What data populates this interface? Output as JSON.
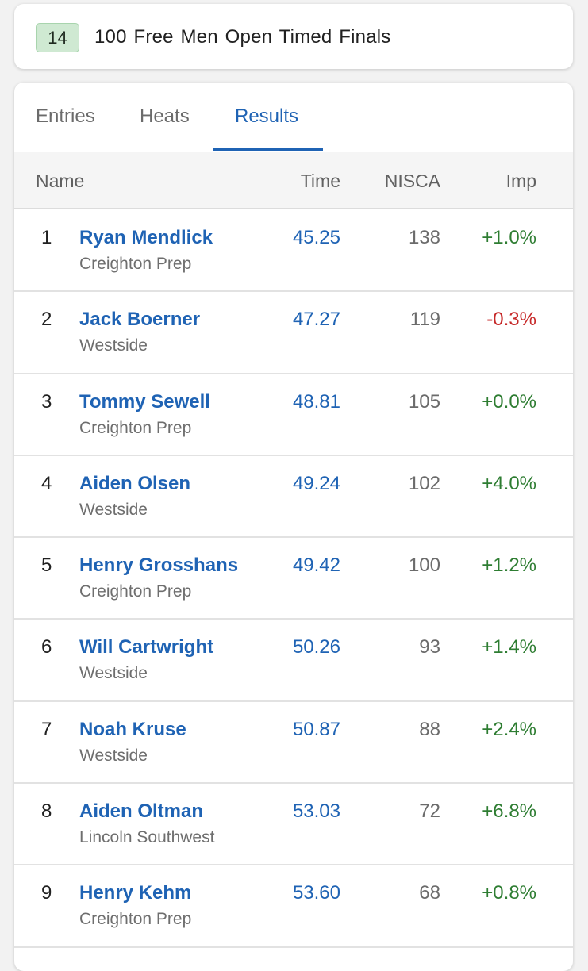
{
  "event": {
    "number": "14",
    "title": "100 Free  Men  Open  Timed Finals"
  },
  "tabs": [
    {
      "label": "Entries",
      "active": false
    },
    {
      "label": "Heats",
      "active": false
    },
    {
      "label": "Results",
      "active": true
    }
  ],
  "table": {
    "headers": {
      "name": "Name",
      "time": "Time",
      "nisca": "NISCA",
      "imp": "Imp"
    },
    "rows": [
      {
        "place": "1",
        "name": "Ryan Mendlick",
        "team": "Creighton Prep",
        "time": "45.25",
        "nisca": "138",
        "imp": "+1.0%"
      },
      {
        "place": "2",
        "name": "Jack Boerner",
        "team": "Westside",
        "time": "47.27",
        "nisca": "119",
        "imp": "-0.3%"
      },
      {
        "place": "3",
        "name": "Tommy Sewell",
        "team": "Creighton Prep",
        "time": "48.81",
        "nisca": "105",
        "imp": "+0.0%"
      },
      {
        "place": "4",
        "name": "Aiden Olsen",
        "team": "Westside",
        "time": "49.24",
        "nisca": "102",
        "imp": "+4.0%"
      },
      {
        "place": "5",
        "name": "Henry Grosshans",
        "team": "Creighton Prep",
        "time": "49.42",
        "nisca": "100",
        "imp": "+1.2%"
      },
      {
        "place": "6",
        "name": "Will Cartwright",
        "team": "Westside",
        "time": "50.26",
        "nisca": "93",
        "imp": "+1.4%"
      },
      {
        "place": "7",
        "name": "Noah Kruse",
        "team": "Westside",
        "time": "50.87",
        "nisca": "88",
        "imp": "+2.4%"
      },
      {
        "place": "8",
        "name": "Aiden Oltman",
        "team": "Lincoln Southwest",
        "time": "53.03",
        "nisca": "72",
        "imp": "+6.8%"
      },
      {
        "place": "9",
        "name": "Henry Kehm",
        "team": "Creighton Prep",
        "time": "53.60",
        "nisca": "68",
        "imp": "+0.8%"
      }
    ]
  },
  "colors": {
    "accent": "#1f63b4",
    "positive": "#2e7d32",
    "negative": "#c62828",
    "badge": "#cfe9d2"
  }
}
